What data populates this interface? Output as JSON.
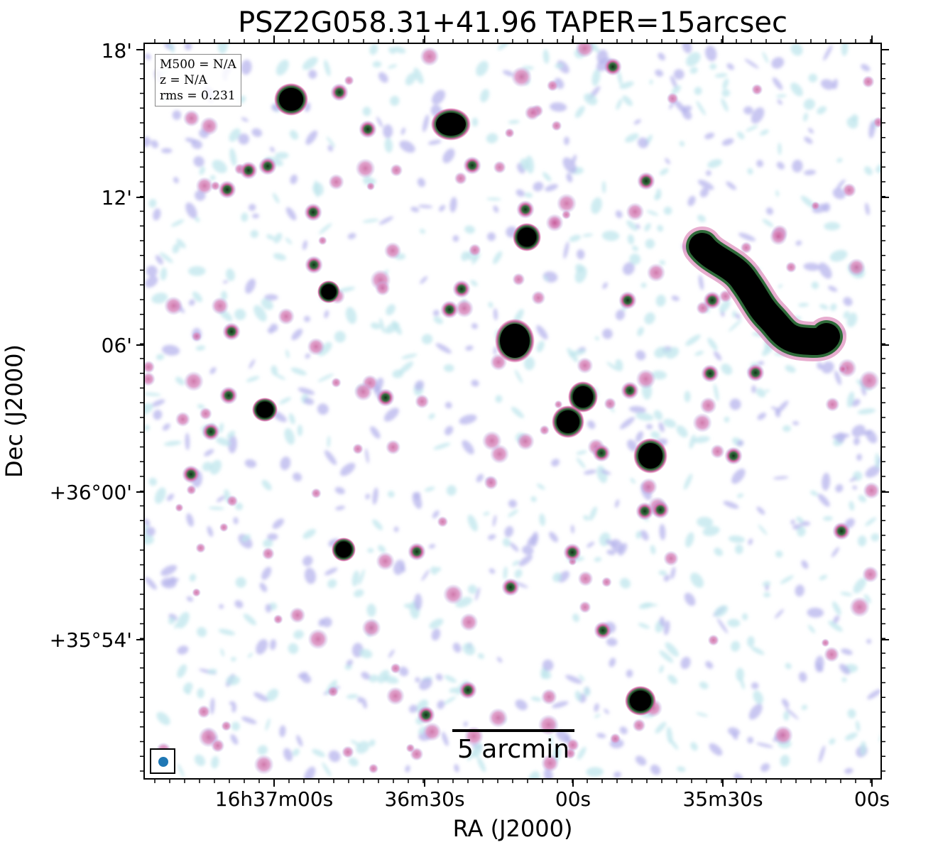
{
  "figure": {
    "title": "PSZ2G058.31+41.96 TAPER=15arcsec",
    "xlabel": "RA (J2000)",
    "ylabel": "Dec (J2000)"
  },
  "info_box": {
    "mass": "M500 = N/A",
    "redshift": "z = N/A",
    "rms": "rms = 0.231"
  },
  "scale_bar": {
    "label": "5 arcmin"
  },
  "beam": {
    "color": "#1f77b4"
  },
  "y_ticks": [
    "18'",
    "12'",
    "06'",
    "+36°00'",
    "+35°54'"
  ],
  "x_ticks": [
    "16h37m00s",
    "36m30s",
    "00s",
    "35m30s",
    "00s"
  ],
  "colors": {
    "noise_light": "#bfe6ec",
    "noise_mid": "#b7b4ec",
    "emission_pink": "#d46aa8",
    "emission_green": "#2f6b3a",
    "source_core": "#000000"
  }
}
